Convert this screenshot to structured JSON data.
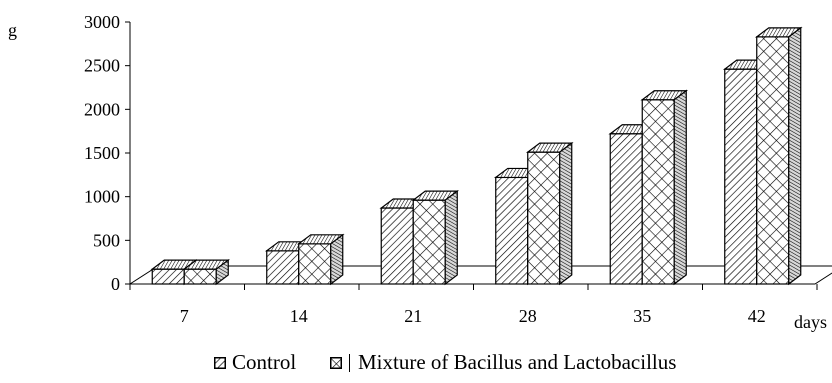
{
  "chart_data": {
    "type": "bar",
    "ylabel": "g",
    "xlabel": "days",
    "ylim": [
      0,
      3000
    ],
    "yticks": [
      0,
      500,
      1000,
      1500,
      2000,
      2500,
      3000
    ],
    "categories": [
      "7",
      "14",
      "21",
      "28",
      "35",
      "42"
    ],
    "series": [
      {
        "name": "Control",
        "pattern": "diagonal",
        "values": [
          170,
          380,
          870,
          1220,
          1720,
          2460
        ]
      },
      {
        "name": "Mixture of Bacillus and Lactobacillus",
        "pattern": "crosshatch",
        "values": [
          170,
          460,
          960,
          1510,
          2110,
          2830
        ]
      }
    ],
    "grid": false,
    "legend_position": "bottom",
    "style": "3d-clustered-column",
    "colors": {
      "bar_fill": "#ffffff",
      "stroke": "#000000"
    }
  }
}
